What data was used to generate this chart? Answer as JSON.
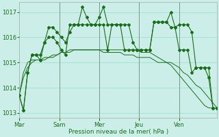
{
  "xlabel": "Pression niveau de la mer( hPa )",
  "ylim": [
    1012.8,
    1017.4
  ],
  "yticks": [
    1013,
    1014,
    1015,
    1016,
    1017
  ],
  "background_color": "#cceee8",
  "grid_color": "#99ddcc",
  "line_color": "#1a6e1a",
  "xtick_labels": [
    "Mar",
    "Sam",
    "Mer",
    "Jeu",
    "Ven"
  ],
  "xtick_positions": [
    0,
    10,
    20,
    30,
    40
  ],
  "n_points": 48,
  "series1": [
    1013.7,
    1013.1,
    1014.6,
    1015.3,
    1015.3,
    1015.3,
    1015.8,
    1016.4,
    1016.4,
    1016.2,
    1016.0,
    1015.8,
    1016.2,
    1016.5,
    1016.5,
    1016.5,
    1016.5,
    1016.5,
    1016.5,
    1016.8,
    1017.2,
    1016.5,
    1016.5,
    1016.5,
    1016.5,
    1016.5,
    1016.5,
    1015.8,
    1015.5,
    1015.5,
    1015.5,
    1015.5,
    1016.6,
    1016.6,
    1016.6,
    1016.6,
    1017.0,
    1016.4,
    1016.5,
    1016.5,
    1016.5,
    1016.2,
    1014.8,
    1014.8,
    1014.8,
    1014.4,
    1013.2,
    1013.2
  ],
  "series2": [
    1013.7,
    1013.1,
    1014.6,
    1015.3,
    1015.3,
    1015.1,
    1015.8,
    1016.0,
    1016.0,
    1015.8,
    1015.5,
    1015.3,
    1016.5,
    1016.5,
    1016.5,
    1017.2,
    1016.8,
    1016.5,
    1016.5,
    1016.5,
    1016.5,
    1015.5,
    1016.5,
    1016.5,
    1016.5,
    1015.5,
    1015.5,
    1015.5,
    1015.5,
    1015.5,
    1015.5,
    1015.5,
    1016.6,
    1016.6,
    1016.6,
    1016.6,
    1016.4,
    1016.4,
    1015.5,
    1015.5,
    1015.5,
    1014.6,
    1014.8,
    1014.8,
    1014.8,
    1014.8,
    1013.2,
    1013.2
  ],
  "series3": [
    1013.7,
    1014.4,
    1014.8,
    1015.0,
    1015.1,
    1015.1,
    1015.1,
    1015.2,
    1015.2,
    1015.3,
    1015.4,
    1015.4,
    1015.4,
    1015.5,
    1015.5,
    1015.5,
    1015.5,
    1015.5,
    1015.5,
    1015.5,
    1015.4,
    1015.4,
    1015.4,
    1015.4,
    1015.4,
    1015.3,
    1015.3,
    1015.3,
    1015.2,
    1015.2,
    1015.2,
    1015.2,
    1015.1,
    1015.0,
    1015.0,
    1015.0,
    1015.0,
    1014.9,
    1014.8,
    1014.6,
    1014.5,
    1014.3,
    1014.1,
    1014.0,
    1013.8,
    1013.6,
    1013.4,
    1013.2
  ],
  "series4": [
    1013.7,
    1014.6,
    1015.0,
    1015.1,
    1015.1,
    1015.1,
    1015.2,
    1015.2,
    1015.3,
    1015.3,
    1015.4,
    1015.4,
    1015.5,
    1015.5,
    1015.5,
    1015.5,
    1015.5,
    1015.5,
    1015.5,
    1015.5,
    1015.5,
    1015.5,
    1015.5,
    1015.5,
    1015.5,
    1015.5,
    1015.5,
    1015.5,
    1015.5,
    1015.4,
    1015.4,
    1015.4,
    1015.3,
    1015.2,
    1015.1,
    1015.0,
    1014.9,
    1014.7,
    1014.5,
    1014.3,
    1014.1,
    1013.9,
    1013.7,
    1013.5,
    1013.3,
    1013.2,
    1013.2,
    1013.2
  ]
}
